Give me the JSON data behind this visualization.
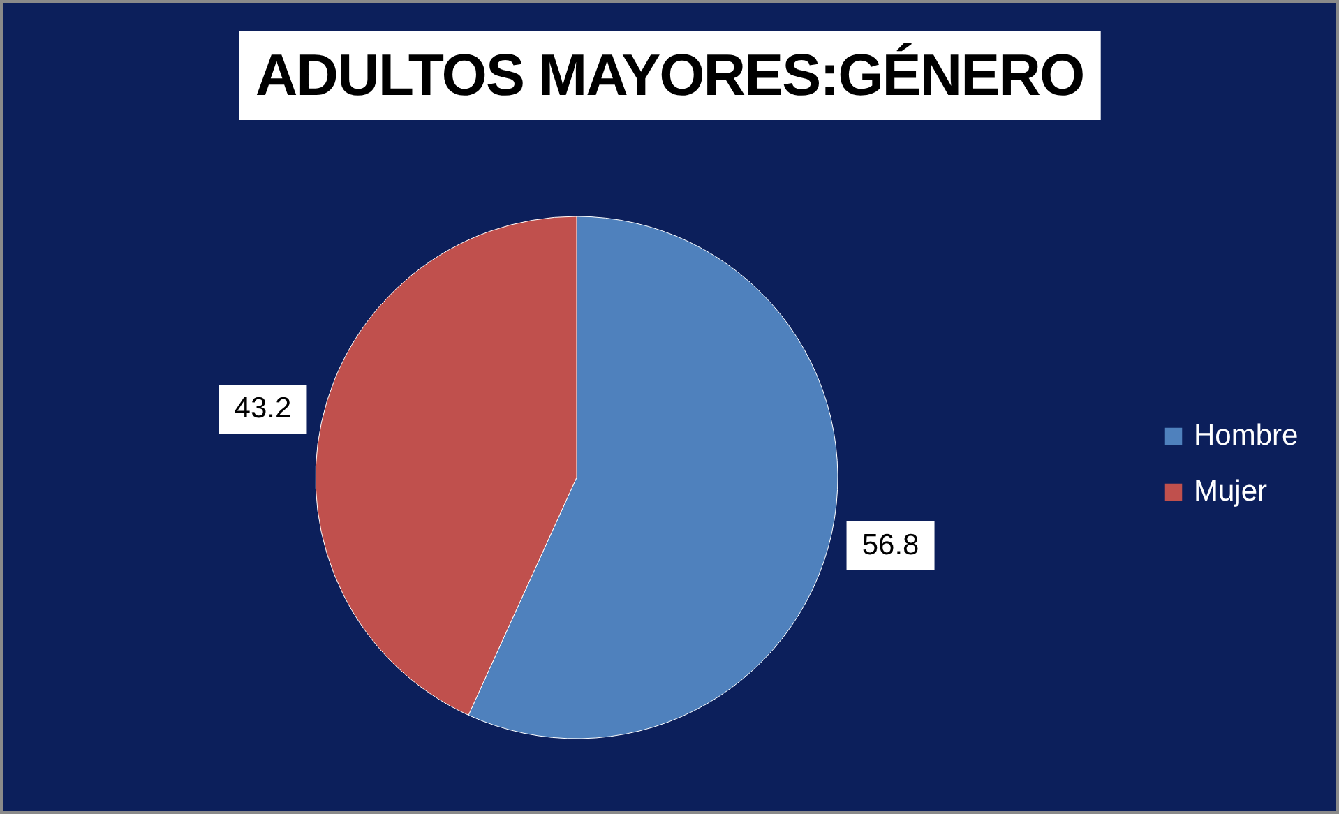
{
  "chart_data": {
    "type": "pie",
    "title": "ADULTOS MAYORES:GÉNERO",
    "categories": [
      "Hombre",
      "Mujer"
    ],
    "values": [
      56.8,
      43.2
    ],
    "colors": [
      "#4f81bd",
      "#c0504d"
    ],
    "data_labels": true,
    "legend": "right"
  }
}
